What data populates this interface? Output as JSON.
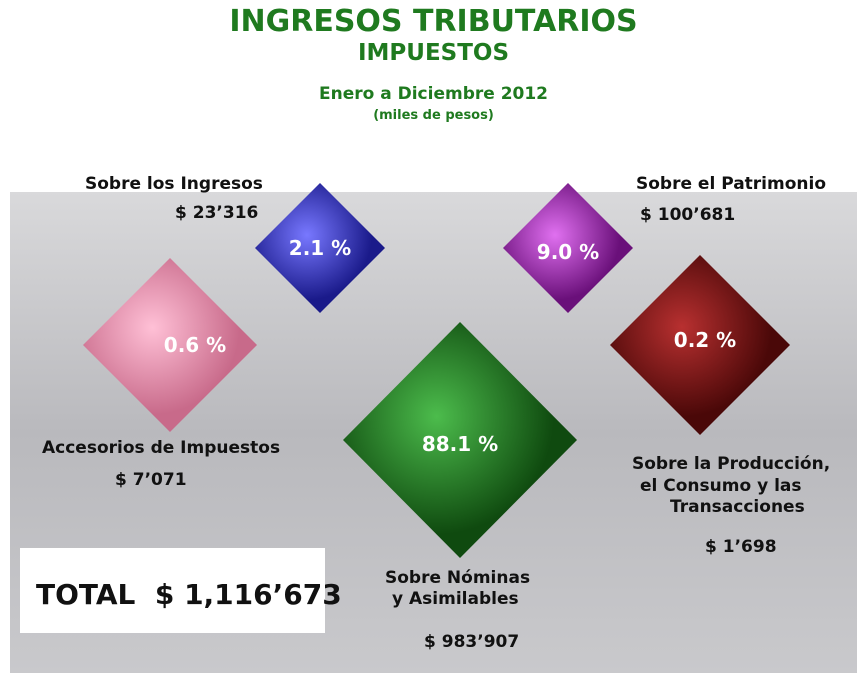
{
  "header": {
    "title": "INGRESOS TRIBUTARIOS",
    "subtitle": "IMPUESTOS",
    "period": "Enero a Diciembre 2012",
    "units": "(miles de pesos)"
  },
  "items": [
    {
      "name": [
        "Sobre los Ingresos"
      ],
      "amount": "$ 23’316",
      "percent": "2.1 %"
    },
    {
      "name": [
        "Sobre el Patrimonio"
      ],
      "amount": "$ 100’681",
      "percent": "9.0 %"
    },
    {
      "name": [
        "Accesorios de Impuestos"
      ],
      "amount": "$ 7’071",
      "percent": "0.6 %"
    },
    {
      "name": [
        "Sobre la Producción,",
        "el Consumo y las",
        "Transacciones"
      ],
      "amount": "$ 1’698",
      "percent": "0.2 %"
    },
    {
      "name": [
        "Sobre Nóminas",
        "y Asimilables"
      ],
      "amount": "$ 983’907",
      "percent": "88.1 %"
    }
  ],
  "total": "TOTAL  $ 1,116’673"
}
